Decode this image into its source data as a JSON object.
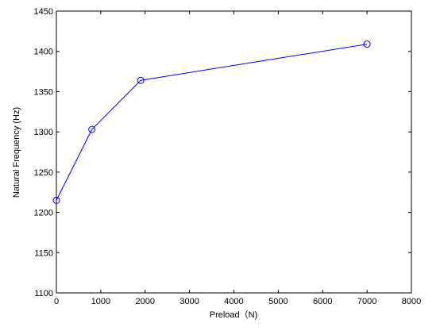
{
  "chart_data": {
    "type": "line",
    "title": "",
    "xlabel": "Preload（N)",
    "ylabel": "Natural Frequency (Hz)",
    "xlim": [
      0,
      8000
    ],
    "ylim": [
      1100,
      1450
    ],
    "xticks": [
      0,
      1000,
      2000,
      3000,
      4000,
      5000,
      6000,
      7000,
      8000
    ],
    "yticks": [
      1100,
      1150,
      1200,
      1250,
      1300,
      1350,
      1400,
      1450
    ],
    "grid": false,
    "legend": "none",
    "series": [
      {
        "color": "#0000ff",
        "marker": "open-circle",
        "x": [
          0,
          800,
          1900,
          7000
        ],
        "y": [
          1215,
          1303,
          1364,
          1409
        ]
      }
    ]
  }
}
